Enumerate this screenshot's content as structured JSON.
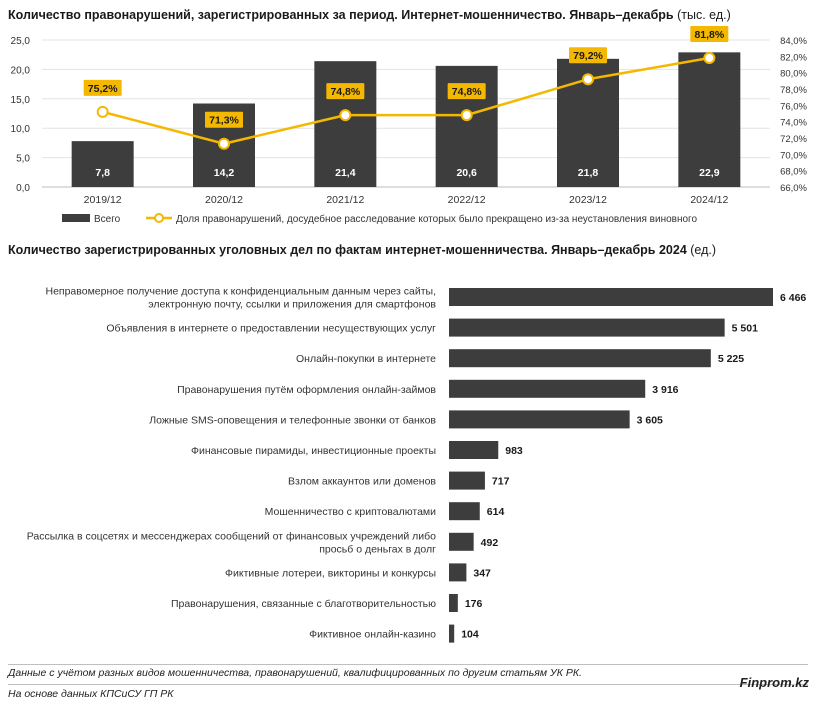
{
  "chart1": {
    "title_bold": "Количество правонарушений, зарегистрированных за период. Интернет-мошенничество. Январь–декабрь",
    "title_unit": "(тыс. ед.)"
  },
  "chart2": {
    "title_bold": "Количество зарегистрированных уголовных дел по фактам интернет-мошенничества. Январь–декабрь 2024",
    "title_unit": "(ед.)"
  },
  "footer": {
    "note": "Данные с учётом разных видов мошенничества, правонарушений, квалифицированных по другим статьям УК РК.",
    "source": "На основе данных КПСиСУ ГП РК",
    "brand": "Finprom.kz"
  },
  "colors": {
    "bar": "#3d3d3d",
    "line": "#f5b800",
    "label_bg": "#f5b800",
    "grid": "#e3e3e3"
  },
  "chart_data": [
    {
      "type": "bar",
      "categories": [
        "2019/12",
        "2020/12",
        "2021/12",
        "2022/12",
        "2023/12",
        "2024/12"
      ],
      "series": [
        {
          "name": "Всего",
          "values": [
            7.8,
            14.2,
            21.4,
            20.6,
            21.8,
            22.9
          ],
          "labels": [
            "7,8",
            "14,2",
            "21,4",
            "20,6",
            "21,8",
            "22,9"
          ],
          "type": "bar",
          "axis": "left"
        },
        {
          "name": "Доля правонарушений, досудебное расследование которых было прекращено из-за неустановления виновного",
          "values": [
            75.2,
            71.3,
            74.8,
            74.8,
            79.2,
            81.8
          ],
          "labels": [
            "75,2%",
            "71,3%",
            "74,8%",
            "74,8%",
            "79,2%",
            "81,8%"
          ],
          "type": "line",
          "axis": "right"
        }
      ],
      "y_left": {
        "ylim": [
          0,
          25
        ],
        "ticks": [
          "0,0",
          "5,0",
          "10,0",
          "15,0",
          "20,0",
          "25,0"
        ]
      },
      "y_right": {
        "ylim": [
          66,
          84
        ],
        "ticks": [
          "66,0%",
          "68,0%",
          "70,0%",
          "72,0%",
          "74,0%",
          "76,0%",
          "78,0%",
          "80,0%",
          "82,0%",
          "84,0%"
        ]
      },
      "grid": true,
      "legend": "bottom"
    },
    {
      "type": "bar",
      "orientation": "horizontal",
      "categories": [
        [
          "Неправомерное получение доступа к конфиденциальным данным через сайты,",
          "электронную почту, ссылки и приложения для смартфонов"
        ],
        [
          "Объявления в интернете о предоставлении несуществующих услуг"
        ],
        [
          "Онлайн-покупки в интернете"
        ],
        [
          "Правонарушения путём оформления онлайн-займов"
        ],
        [
          "Ложные SMS-оповещения и телефонные звонки от банков"
        ],
        [
          "Финансовые пирамиды, инвестиционные проекты"
        ],
        [
          "Взлом аккаунтов или доменов"
        ],
        [
          "Мошенничество с криптовалютами"
        ],
        [
          "Рассылка в соцсетях и мессенджерах сообщений от финансовых учреждений либо",
          "просьб о деньгах в долг"
        ],
        [
          "Фиктивные лотереи, викторины и конкурсы"
        ],
        [
          "Правонарушения, связанные с благотворительностью"
        ],
        [
          "Фиктивное онлайн-казино"
        ]
      ],
      "values": [
        6466,
        5501,
        5225,
        3916,
        3605,
        983,
        717,
        614,
        492,
        347,
        176,
        104
      ],
      "labels": [
        "6 466",
        "5 501",
        "5 225",
        "3 916",
        "3 605",
        "983",
        "717",
        "614",
        "492",
        "347",
        "176",
        "104"
      ]
    }
  ]
}
